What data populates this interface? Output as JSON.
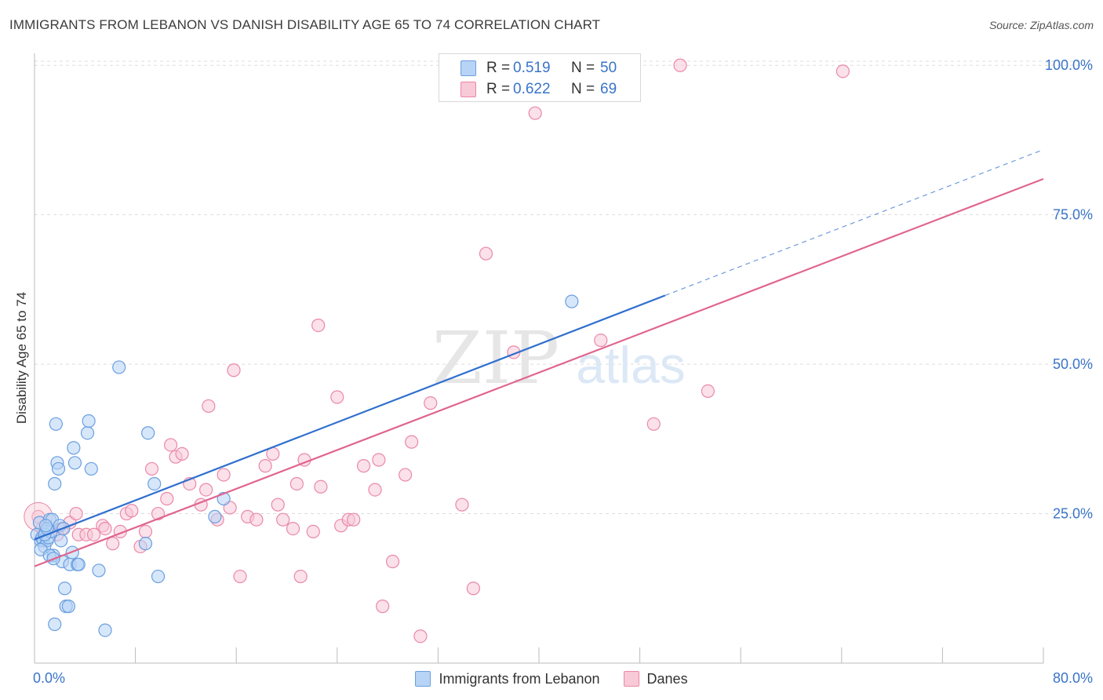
{
  "title": "IMMIGRANTS FROM LEBANON VS DANISH DISABILITY AGE 65 TO 74 CORRELATION CHART",
  "source": "Source: ZipAtlas.com",
  "watermark": {
    "zip": "ZIP",
    "atlas": "atlas"
  },
  "stats_legend": {
    "rows": [
      {
        "r_label": "R =",
        "r_value": "0.519",
        "n_label": "N =",
        "n_value": "50"
      },
      {
        "r_label": "R =",
        "r_value": "0.622",
        "n_label": "N =",
        "n_value": "69"
      }
    ]
  },
  "colors": {
    "blue_fill": "#b7d3f5",
    "blue_stroke": "#6a9fe0",
    "blue_line": "#2f6fce",
    "pink_fill": "#f8c9d7",
    "pink_stroke": "#ea88a8",
    "pink_line": "#e0658e",
    "grid": "#dddddd",
    "axis_text_blue": "#3a74c8"
  },
  "chart_data": {
    "type": "scatter",
    "title": "IMMIGRANTS FROM LEBANON VS DANISH DISABILITY AGE 65 TO 74 CORRELATION CHART",
    "xlabel": "",
    "ylabel": "Disability Age 65 to 74",
    "xlim": [
      0,
      80
    ],
    "ylim": [
      0,
      102
    ],
    "x_tick_labels": [
      "0.0%",
      "80.0%"
    ],
    "y_tick_labels": [
      "25.0%",
      "50.0%",
      "75.0%",
      "100.0%"
    ],
    "y_ticks": [
      25,
      50,
      75,
      100
    ],
    "grid": true,
    "legend_position": "bottom",
    "series": [
      {
        "name": "Immigrants from Lebanon",
        "color": "#6a9fe0",
        "points": [
          [
            0.2,
            21.5
          ],
          [
            0.4,
            23.5
          ],
          [
            0.5,
            20.5
          ],
          [
            0.6,
            21
          ],
          [
            0.7,
            20.5
          ],
          [
            0.8,
            19.5
          ],
          [
            0.9,
            22
          ],
          [
            1.0,
            20.5
          ],
          [
            1.1,
            21
          ],
          [
            1.2,
            24
          ],
          [
            1.3,
            22
          ],
          [
            1.4,
            24
          ],
          [
            1.5,
            18
          ],
          [
            1.6,
            30
          ],
          [
            1.7,
            40
          ],
          [
            1.8,
            33.5
          ],
          [
            1.9,
            32.5
          ],
          [
            2.0,
            23
          ],
          [
            2.1,
            20.5
          ],
          [
            2.2,
            17
          ],
          [
            2.3,
            22.5
          ],
          [
            2.4,
            12.5
          ],
          [
            2.5,
            9.5
          ],
          [
            2.7,
            9.5
          ],
          [
            2.8,
            16.5
          ],
          [
            3.0,
            18.5
          ],
          [
            3.1,
            36
          ],
          [
            3.2,
            33.5
          ],
          [
            3.4,
            16.5
          ],
          [
            3.5,
            16.5
          ],
          [
            4.2,
            38.5
          ],
          [
            4.3,
            40.5
          ],
          [
            4.5,
            32.5
          ],
          [
            5.1,
            15.5
          ],
          [
            5.6,
            5.5
          ],
          [
            6.7,
            49.5
          ],
          [
            8.8,
            20
          ],
          [
            9.0,
            38.5
          ],
          [
            9.5,
            30
          ],
          [
            9.8,
            14.5
          ],
          [
            15.0,
            27.5
          ],
          [
            14.3,
            24.5
          ],
          [
            1.6,
            6.5
          ],
          [
            0.8,
            21.5
          ],
          [
            1.0,
            22.5
          ],
          [
            0.5,
            19
          ],
          [
            1.2,
            18
          ],
          [
            0.9,
            23
          ],
          [
            1.5,
            17.5
          ],
          [
            42.6,
            60.5
          ]
        ],
        "trend": {
          "x0": 0,
          "y0": 20.7,
          "x1": 50,
          "y1": 61.5,
          "dashed_to_x": 80,
          "dashed_to_y": 85.9
        }
      },
      {
        "name": "Danes",
        "color": "#ea88a8",
        "points": [
          [
            0.3,
            24.5
          ],
          [
            1.3,
            22
          ],
          [
            2.2,
            22.5
          ],
          [
            2.8,
            23.5
          ],
          [
            3.3,
            25
          ],
          [
            3.5,
            21.5
          ],
          [
            4.1,
            21.5
          ],
          [
            4.7,
            21.5
          ],
          [
            5.4,
            23
          ],
          [
            5.6,
            22.5
          ],
          [
            6.2,
            20
          ],
          [
            6.8,
            22
          ],
          [
            7.3,
            25
          ],
          [
            7.7,
            25.5
          ],
          [
            8.4,
            19.5
          ],
          [
            8.8,
            22
          ],
          [
            9.3,
            32.5
          ],
          [
            9.8,
            25
          ],
          [
            10.5,
            27.5
          ],
          [
            10.8,
            36.5
          ],
          [
            11.2,
            34.5
          ],
          [
            11.7,
            35
          ],
          [
            12.3,
            30
          ],
          [
            13.2,
            26.5
          ],
          [
            13.6,
            29
          ],
          [
            13.8,
            43
          ],
          [
            14.5,
            24
          ],
          [
            15.0,
            31.5
          ],
          [
            15.5,
            26
          ],
          [
            15.8,
            49
          ],
          [
            16.3,
            14.5
          ],
          [
            16.9,
            24.5
          ],
          [
            17.6,
            24
          ],
          [
            18.3,
            33
          ],
          [
            18.9,
            35
          ],
          [
            19.3,
            26.5
          ],
          [
            19.7,
            24
          ],
          [
            20.5,
            22.5
          ],
          [
            20.8,
            30
          ],
          [
            21.1,
            14.5
          ],
          [
            21.4,
            34
          ],
          [
            22.1,
            22
          ],
          [
            22.5,
            56.5
          ],
          [
            22.7,
            29.5
          ],
          [
            24.0,
            44.5
          ],
          [
            24.3,
            23
          ],
          [
            24.9,
            24
          ],
          [
            25.3,
            24
          ],
          [
            26.1,
            33
          ],
          [
            27.3,
            34
          ],
          [
            27.0,
            29
          ],
          [
            27.6,
            9.5
          ],
          [
            28.4,
            17
          ],
          [
            29.4,
            31.5
          ],
          [
            29.9,
            37
          ],
          [
            30.6,
            4.5
          ],
          [
            31.4,
            43.5
          ],
          [
            33.9,
            26.5
          ],
          [
            34.8,
            12.5
          ],
          [
            35.8,
            68.5
          ],
          [
            38.0,
            52
          ],
          [
            39.7,
            92
          ],
          [
            44.9,
            54
          ],
          [
            49.1,
            40
          ],
          [
            51.2,
            100
          ],
          [
            53.4,
            45.5
          ],
          [
            64.1,
            99
          ],
          [
            0.6,
            22.5
          ],
          [
            1.8,
            21.5
          ]
        ],
        "trend": {
          "x0": 0,
          "y0": 16.2,
          "x1": 80,
          "y1": 81.0
        }
      }
    ]
  },
  "legend": {
    "items": [
      "Immigrants from Lebanon",
      "Danes"
    ]
  }
}
